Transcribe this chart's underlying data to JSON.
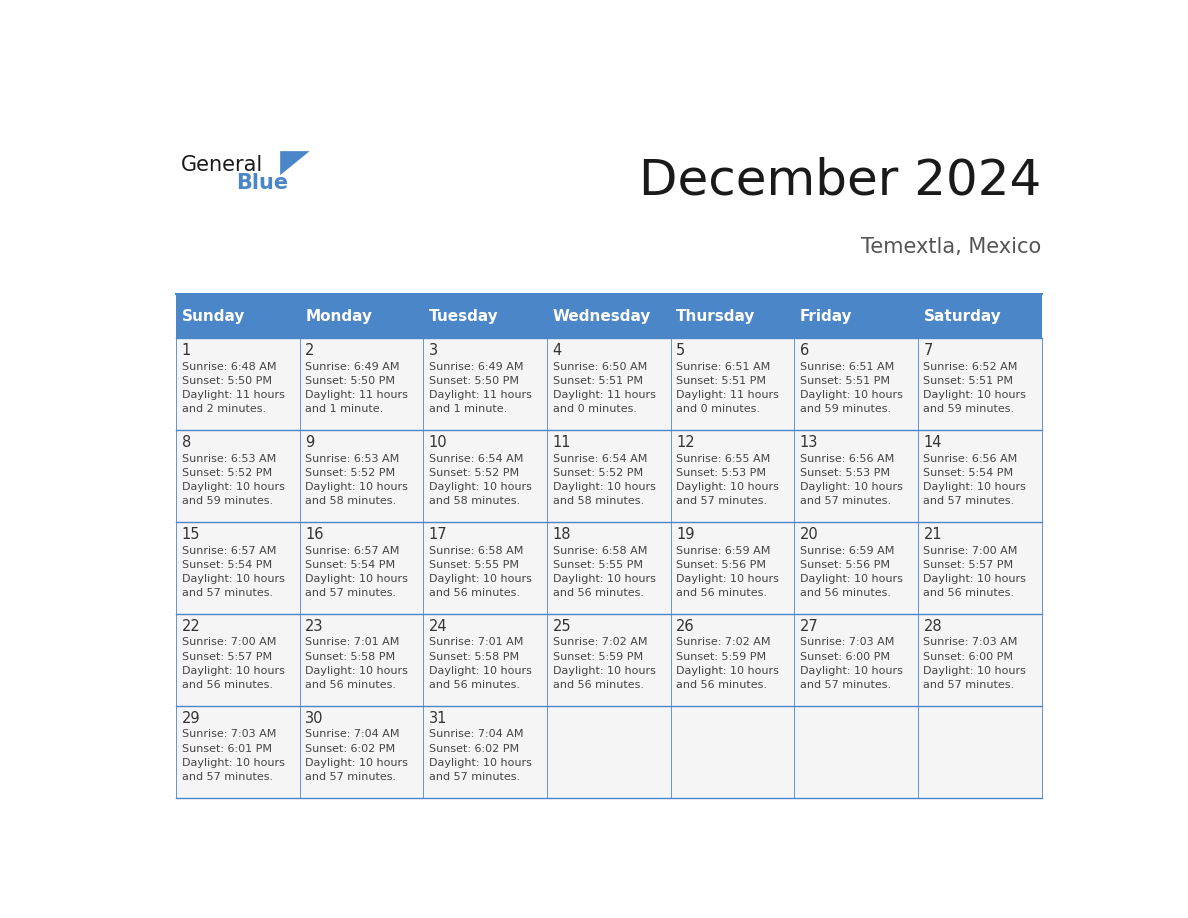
{
  "title": "December 2024",
  "subtitle": "Temextla, Mexico",
  "days_of_week": [
    "Sunday",
    "Monday",
    "Tuesday",
    "Wednesday",
    "Thursday",
    "Friday",
    "Saturday"
  ],
  "header_bg": "#4a86c8",
  "header_text": "#ffffff",
  "cell_bg": "#f5f5f5",
  "cell_border": "#4a86c8",
  "day_num_color": "#333333",
  "cell_text_color": "#444444",
  "title_color": "#1a1a1a",
  "subtitle_color": "#555555",
  "logo_general_color": "#1a1a1a",
  "logo_blue_color": "#4a86c8",
  "logo_triangle_color": "#4a86c8",
  "calendar": [
    [
      {
        "day": 1,
        "sunrise": "6:48 AM",
        "sunset": "5:50 PM",
        "daylight_h": "11 hours",
        "daylight_m": "and 2 minutes."
      },
      {
        "day": 2,
        "sunrise": "6:49 AM",
        "sunset": "5:50 PM",
        "daylight_h": "11 hours",
        "daylight_m": "and 1 minute."
      },
      {
        "day": 3,
        "sunrise": "6:49 AM",
        "sunset": "5:50 PM",
        "daylight_h": "11 hours",
        "daylight_m": "and 1 minute."
      },
      {
        "day": 4,
        "sunrise": "6:50 AM",
        "sunset": "5:51 PM",
        "daylight_h": "11 hours",
        "daylight_m": "and 0 minutes."
      },
      {
        "day": 5,
        "sunrise": "6:51 AM",
        "sunset": "5:51 PM",
        "daylight_h": "11 hours",
        "daylight_m": "and 0 minutes."
      },
      {
        "day": 6,
        "sunrise": "6:51 AM",
        "sunset": "5:51 PM",
        "daylight_h": "10 hours",
        "daylight_m": "and 59 minutes."
      },
      {
        "day": 7,
        "sunrise": "6:52 AM",
        "sunset": "5:51 PM",
        "daylight_h": "10 hours",
        "daylight_m": "and 59 minutes."
      }
    ],
    [
      {
        "day": 8,
        "sunrise": "6:53 AM",
        "sunset": "5:52 PM",
        "daylight_h": "10 hours",
        "daylight_m": "and 59 minutes."
      },
      {
        "day": 9,
        "sunrise": "6:53 AM",
        "sunset": "5:52 PM",
        "daylight_h": "10 hours",
        "daylight_m": "and 58 minutes."
      },
      {
        "day": 10,
        "sunrise": "6:54 AM",
        "sunset": "5:52 PM",
        "daylight_h": "10 hours",
        "daylight_m": "and 58 minutes."
      },
      {
        "day": 11,
        "sunrise": "6:54 AM",
        "sunset": "5:52 PM",
        "daylight_h": "10 hours",
        "daylight_m": "and 58 minutes."
      },
      {
        "day": 12,
        "sunrise": "6:55 AM",
        "sunset": "5:53 PM",
        "daylight_h": "10 hours",
        "daylight_m": "and 57 minutes."
      },
      {
        "day": 13,
        "sunrise": "6:56 AM",
        "sunset": "5:53 PM",
        "daylight_h": "10 hours",
        "daylight_m": "and 57 minutes."
      },
      {
        "day": 14,
        "sunrise": "6:56 AM",
        "sunset": "5:54 PM",
        "daylight_h": "10 hours",
        "daylight_m": "and 57 minutes."
      }
    ],
    [
      {
        "day": 15,
        "sunrise": "6:57 AM",
        "sunset": "5:54 PM",
        "daylight_h": "10 hours",
        "daylight_m": "and 57 minutes."
      },
      {
        "day": 16,
        "sunrise": "6:57 AM",
        "sunset": "5:54 PM",
        "daylight_h": "10 hours",
        "daylight_m": "and 57 minutes."
      },
      {
        "day": 17,
        "sunrise": "6:58 AM",
        "sunset": "5:55 PM",
        "daylight_h": "10 hours",
        "daylight_m": "and 56 minutes."
      },
      {
        "day": 18,
        "sunrise": "6:58 AM",
        "sunset": "5:55 PM",
        "daylight_h": "10 hours",
        "daylight_m": "and 56 minutes."
      },
      {
        "day": 19,
        "sunrise": "6:59 AM",
        "sunset": "5:56 PM",
        "daylight_h": "10 hours",
        "daylight_m": "and 56 minutes."
      },
      {
        "day": 20,
        "sunrise": "6:59 AM",
        "sunset": "5:56 PM",
        "daylight_h": "10 hours",
        "daylight_m": "and 56 minutes."
      },
      {
        "day": 21,
        "sunrise": "7:00 AM",
        "sunset": "5:57 PM",
        "daylight_h": "10 hours",
        "daylight_m": "and 56 minutes."
      }
    ],
    [
      {
        "day": 22,
        "sunrise": "7:00 AM",
        "sunset": "5:57 PM",
        "daylight_h": "10 hours",
        "daylight_m": "and 56 minutes."
      },
      {
        "day": 23,
        "sunrise": "7:01 AM",
        "sunset": "5:58 PM",
        "daylight_h": "10 hours",
        "daylight_m": "and 56 minutes."
      },
      {
        "day": 24,
        "sunrise": "7:01 AM",
        "sunset": "5:58 PM",
        "daylight_h": "10 hours",
        "daylight_m": "and 56 minutes."
      },
      {
        "day": 25,
        "sunrise": "7:02 AM",
        "sunset": "5:59 PM",
        "daylight_h": "10 hours",
        "daylight_m": "and 56 minutes."
      },
      {
        "day": 26,
        "sunrise": "7:02 AM",
        "sunset": "5:59 PM",
        "daylight_h": "10 hours",
        "daylight_m": "and 56 minutes."
      },
      {
        "day": 27,
        "sunrise": "7:03 AM",
        "sunset": "6:00 PM",
        "daylight_h": "10 hours",
        "daylight_m": "and 57 minutes."
      },
      {
        "day": 28,
        "sunrise": "7:03 AM",
        "sunset": "6:00 PM",
        "daylight_h": "10 hours",
        "daylight_m": "and 57 minutes."
      }
    ],
    [
      {
        "day": 29,
        "sunrise": "7:03 AM",
        "sunset": "6:01 PM",
        "daylight_h": "10 hours",
        "daylight_m": "and 57 minutes."
      },
      {
        "day": 30,
        "sunrise": "7:04 AM",
        "sunset": "6:02 PM",
        "daylight_h": "10 hours",
        "daylight_m": "and 57 minutes."
      },
      {
        "day": 31,
        "sunrise": "7:04 AM",
        "sunset": "6:02 PM",
        "daylight_h": "10 hours",
        "daylight_m": "and 57 minutes."
      },
      null,
      null,
      null,
      null
    ]
  ]
}
